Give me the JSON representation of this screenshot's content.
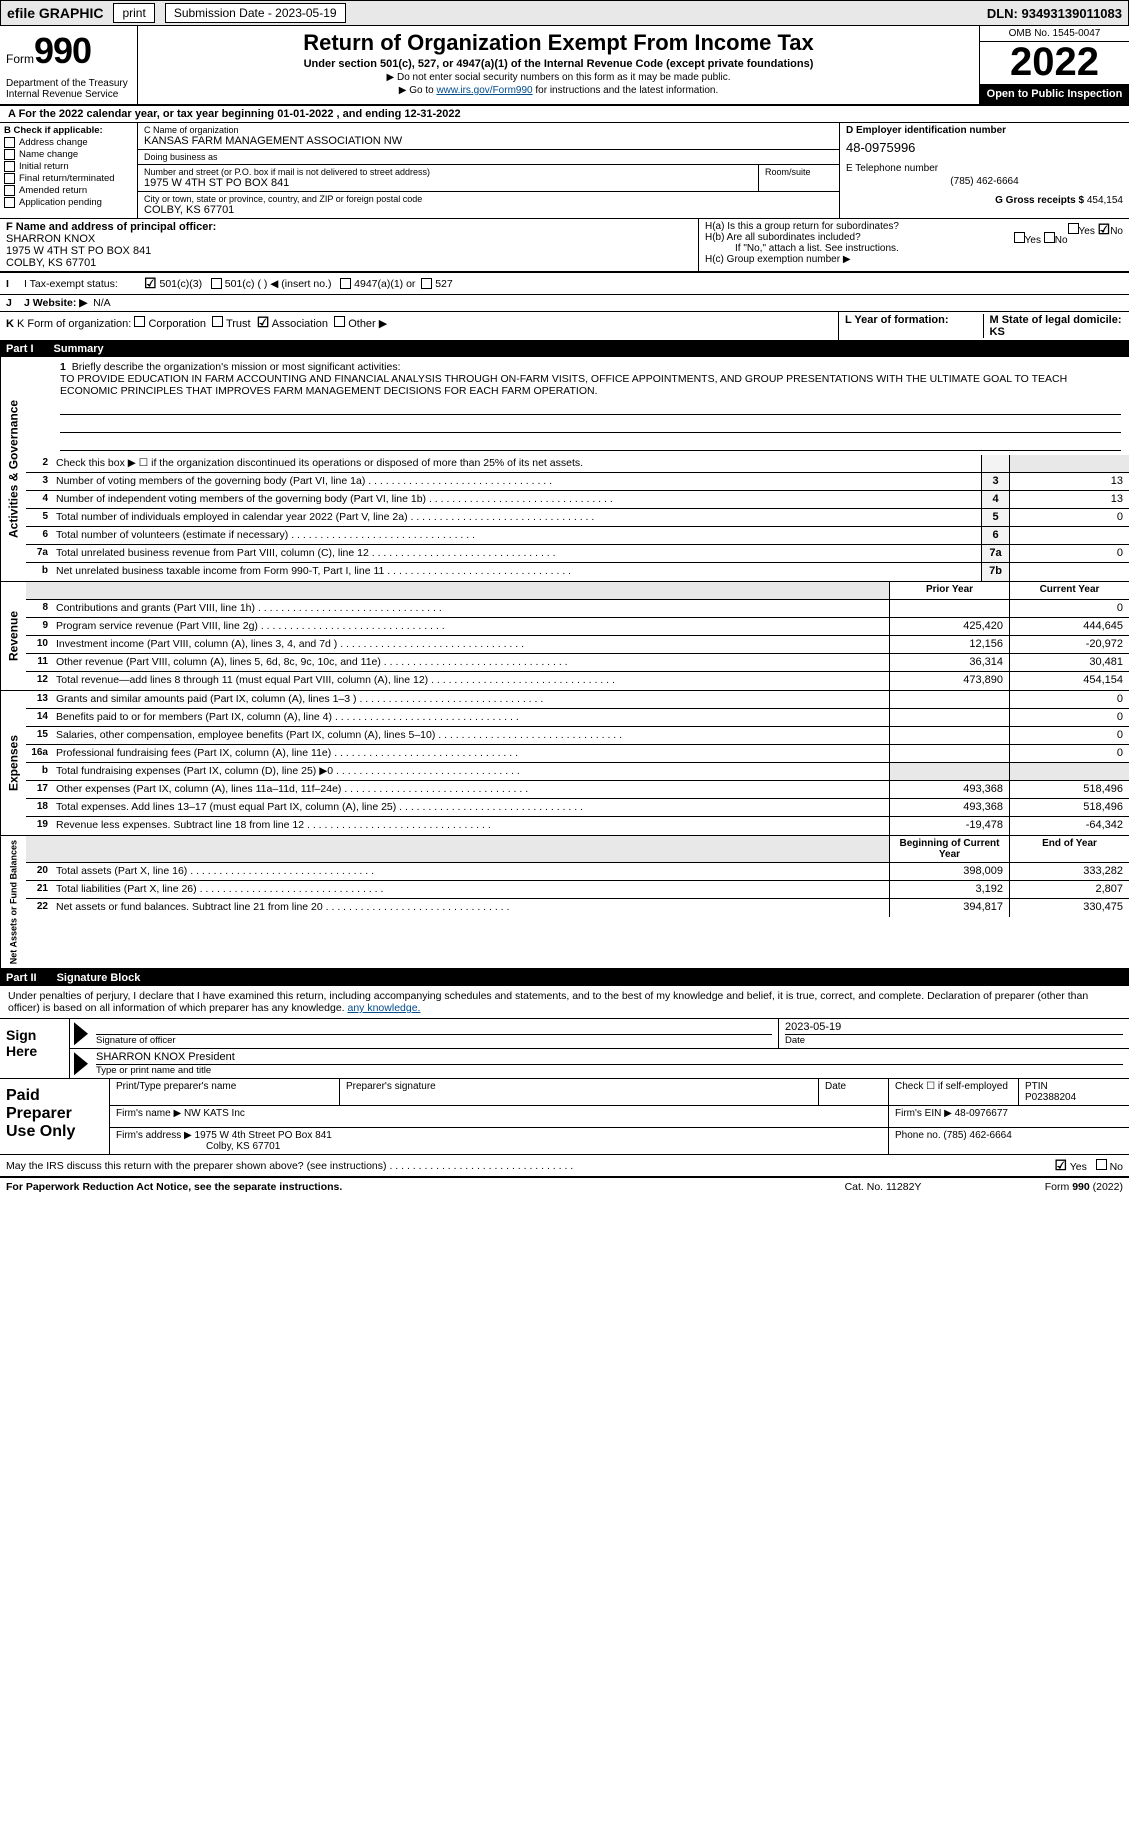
{
  "topbar": {
    "efile_prefix": "efile",
    "efile_label": "GRAPHIC",
    "print": "print",
    "sub_date_label": "Submission Date - 2023-05-19",
    "dln": "DLN: 93493139011083"
  },
  "header": {
    "form_word": "Form",
    "form_no": "990",
    "dept": "Department of the Treasury\nInternal Revenue Service",
    "title": "Return of Organization Exempt From Income Tax",
    "sub1": "Under section 501(c), 527, or 4947(a)(1) of the Internal Revenue Code (except private foundations)",
    "sub2": "▶ Do not enter social security numbers on this form as it may be made public.",
    "sub3_pre": "▶ Go to ",
    "sub3_link": "www.irs.gov/Form990",
    "sub3_post": " for instructions and the latest information.",
    "omb": "OMB No. 1545-0047",
    "year": "2022",
    "open": "Open to Public Inspection"
  },
  "period": {
    "text": "A For the 2022 calendar year, or tax year beginning 01-01-2022     , and ending 12-31-2022"
  },
  "colB": {
    "head": "B Check if applicable:",
    "items": [
      "Address change",
      "Name change",
      "Initial return",
      "Final return/terminated",
      "Amended return",
      "Application pending"
    ]
  },
  "colC": {
    "name_lbl": "C Name of organization",
    "name": "KANSAS FARM MANAGEMENT ASSOCIATION NW",
    "dba_lbl": "Doing business as",
    "dba": "",
    "street_lbl": "Number and street (or P.O. box if mail is not delivered to street address)",
    "room_lbl": "Room/suite",
    "street": "1975 W 4TH ST PO BOX 841",
    "city_lbl": "City or town, state or province, country, and ZIP or foreign postal code",
    "city": "COLBY, KS  67701"
  },
  "colD": {
    "d_lbl": "D Employer identification number",
    "ein": "48-0975996",
    "e_lbl": "E Telephone number",
    "phone": "(785) 462-6664",
    "g_lbl": "G Gross receipts $",
    "g_val": "454,154"
  },
  "f": {
    "lbl": "F Name and address of principal officer:",
    "name": "SHARRON KNOX",
    "addr1": "1975 W 4TH ST PO BOX 841",
    "addr2": "COLBY, KS  67701"
  },
  "h": {
    "a": "H(a)  Is this a group return for subordinates?",
    "b": "H(b)  Are all subordinates included?",
    "note": "If \"No,\" attach a list. See instructions.",
    "c": "H(c)  Group exemption number ▶",
    "yes": "Yes",
    "no": "No"
  },
  "i": {
    "lbl": "I  Tax-exempt status:",
    "o1": "501(c)(3)",
    "o2": "501(c) (   ) ◀ (insert no.)",
    "o3": "4947(a)(1) or",
    "o4": "527"
  },
  "j": {
    "lbl": "J  Website: ▶",
    "val": "N/A"
  },
  "k": {
    "lbl": "K Form of organization:",
    "o1": "Corporation",
    "o2": "Trust",
    "o3": "Association",
    "o4": "Other ▶"
  },
  "lm": {
    "l": "L Year of formation:",
    "m": "M State of legal domicile: KS"
  },
  "part1": {
    "no": "Part I",
    "title": "Summary"
  },
  "mission": {
    "lbl": "1  Briefly describe the organization's mission or most significant activities:",
    "text": "TO PROVIDE EDUCATION IN FARM ACCOUNTING AND FINANCIAL ANALYSIS THROUGH ON-FARM VISITS, OFFICE APPOINTMENTS, AND GROUP PRESENTATIONS WITH THE ULTIMATE GOAL TO TEACH ECONOMIC PRINCIPLES THAT IMPROVES FARM MANAGEMENT DECISIONS FOR EACH FARM OPERATION."
  },
  "gov_rows": [
    {
      "n": "2",
      "t": "Check this box ▶ ☐  if the organization discontinued its operations or disposed of more than 25% of its net assets.",
      "box": "",
      "v": ""
    },
    {
      "n": "3",
      "t": "Number of voting members of the governing body (Part VI, line 1a)",
      "box": "3",
      "v": "13"
    },
    {
      "n": "4",
      "t": "Number of independent voting members of the governing body (Part VI, line 1b)",
      "box": "4",
      "v": "13"
    },
    {
      "n": "5",
      "t": "Total number of individuals employed in calendar year 2022 (Part V, line 2a)",
      "box": "5",
      "v": "0"
    },
    {
      "n": "6",
      "t": "Total number of volunteers (estimate if necessary)",
      "box": "6",
      "v": ""
    },
    {
      "n": "7a",
      "t": "Total unrelated business revenue from Part VIII, column (C), line 12",
      "box": "7a",
      "v": "0"
    },
    {
      "n": "b",
      "t": "Net unrelated business taxable income from Form 990-T, Part I, line 11",
      "box": "7b",
      "v": ""
    }
  ],
  "col_hdr": {
    "prior": "Prior Year",
    "current": "Current Year"
  },
  "rev_rows": [
    {
      "n": "8",
      "t": "Contributions and grants (Part VIII, line 1h)",
      "p": "",
      "c": "0"
    },
    {
      "n": "9",
      "t": "Program service revenue (Part VIII, line 2g)",
      "p": "425,420",
      "c": "444,645"
    },
    {
      "n": "10",
      "t": "Investment income (Part VIII, column (A), lines 3, 4, and 7d )",
      "p": "12,156",
      "c": "-20,972"
    },
    {
      "n": "11",
      "t": "Other revenue (Part VIII, column (A), lines 5, 6d, 8c, 9c, 10c, and 11e)",
      "p": "36,314",
      "c": "30,481"
    },
    {
      "n": "12",
      "t": "Total revenue—add lines 8 through 11 (must equal Part VIII, column (A), line 12)",
      "p": "473,890",
      "c": "454,154"
    }
  ],
  "exp_rows": [
    {
      "n": "13",
      "t": "Grants and similar amounts paid (Part IX, column (A), lines 1–3 )",
      "p": "",
      "c": "0"
    },
    {
      "n": "14",
      "t": "Benefits paid to or for members (Part IX, column (A), line 4)",
      "p": "",
      "c": "0"
    },
    {
      "n": "15",
      "t": "Salaries, other compensation, employee benefits (Part IX, column (A), lines 5–10)",
      "p": "",
      "c": "0"
    },
    {
      "n": "16a",
      "t": "Professional fundraising fees (Part IX, column (A), line 11e)",
      "p": "",
      "c": "0"
    },
    {
      "n": "b",
      "t": "Total fundraising expenses (Part IX, column (D), line 25) ▶0",
      "p": "—shade—",
      "c": "—shade—"
    },
    {
      "n": "17",
      "t": "Other expenses (Part IX, column (A), lines 11a–11d, 11f–24e)",
      "p": "493,368",
      "c": "518,496"
    },
    {
      "n": "18",
      "t": "Total expenses. Add lines 13–17 (must equal Part IX, column (A), line 25)",
      "p": "493,368",
      "c": "518,496"
    },
    {
      "n": "19",
      "t": "Revenue less expenses. Subtract line 18 from line 12",
      "p": "-19,478",
      "c": "-64,342"
    }
  ],
  "na_hdr": {
    "beg": "Beginning of Current Year",
    "end": "End of Year"
  },
  "na_rows": [
    {
      "n": "20",
      "t": "Total assets (Part X, line 16)",
      "p": "398,009",
      "c": "333,282"
    },
    {
      "n": "21",
      "t": "Total liabilities (Part X, line 26)",
      "p": "3,192",
      "c": "2,807"
    },
    {
      "n": "22",
      "t": "Net assets or fund balances. Subtract line 21 from line 20",
      "p": "394,817",
      "c": "330,475"
    }
  ],
  "vtabs": {
    "gov": "Activities & Governance",
    "rev": "Revenue",
    "exp": "Expenses",
    "na": "Net Assets or Fund Balances"
  },
  "part2": {
    "no": "Part II",
    "title": "Signature Block"
  },
  "sig": {
    "decl": "Under penalties of perjury, I declare that I have examined this return, including accompanying schedules and statements, and to the best of my knowledge and belief, it is true, correct, and complete. Declaration of preparer (other than officer) is based on all information of which preparer has any knowledge.",
    "sign_here": "Sign Here",
    "sig_officer": "Signature of officer",
    "date_lbl": "Date",
    "date": "2023-05-19",
    "name_title": "SHARRON KNOX  President",
    "name_title_lbl": "Type or print name and title"
  },
  "paid": {
    "title": "Paid Preparer Use Only",
    "h1": "Print/Type preparer's name",
    "h2": "Preparer's signature",
    "h3": "Date",
    "h4_a": "Check ☐ if self-employed",
    "h4_b": "PTIN",
    "ptin": "P02388204",
    "firm_lbl": "Firm's name    ▶",
    "firm": "NW KATS Inc",
    "ein_lbl": "Firm's EIN ▶",
    "ein": "48-0976677",
    "addr_lbl": "Firm's address ▶",
    "addr1": "1975 W 4th Street PO Box 841",
    "addr2": "Colby, KS  67701",
    "phone_lbl": "Phone no.",
    "phone": "(785) 462-6664",
    "discuss": "May the IRS discuss this return with the preparer shown above? (see instructions)",
    "yes": "Yes",
    "no": "No"
  },
  "footer": {
    "left": "For Paperwork Reduction Act Notice, see the separate instructions.",
    "mid": "Cat. No. 11282Y",
    "right": "Form 990 (2022)"
  },
  "colors": {
    "black": "#000000",
    "link": "#004b8d",
    "shade": "#e8e8e8"
  }
}
